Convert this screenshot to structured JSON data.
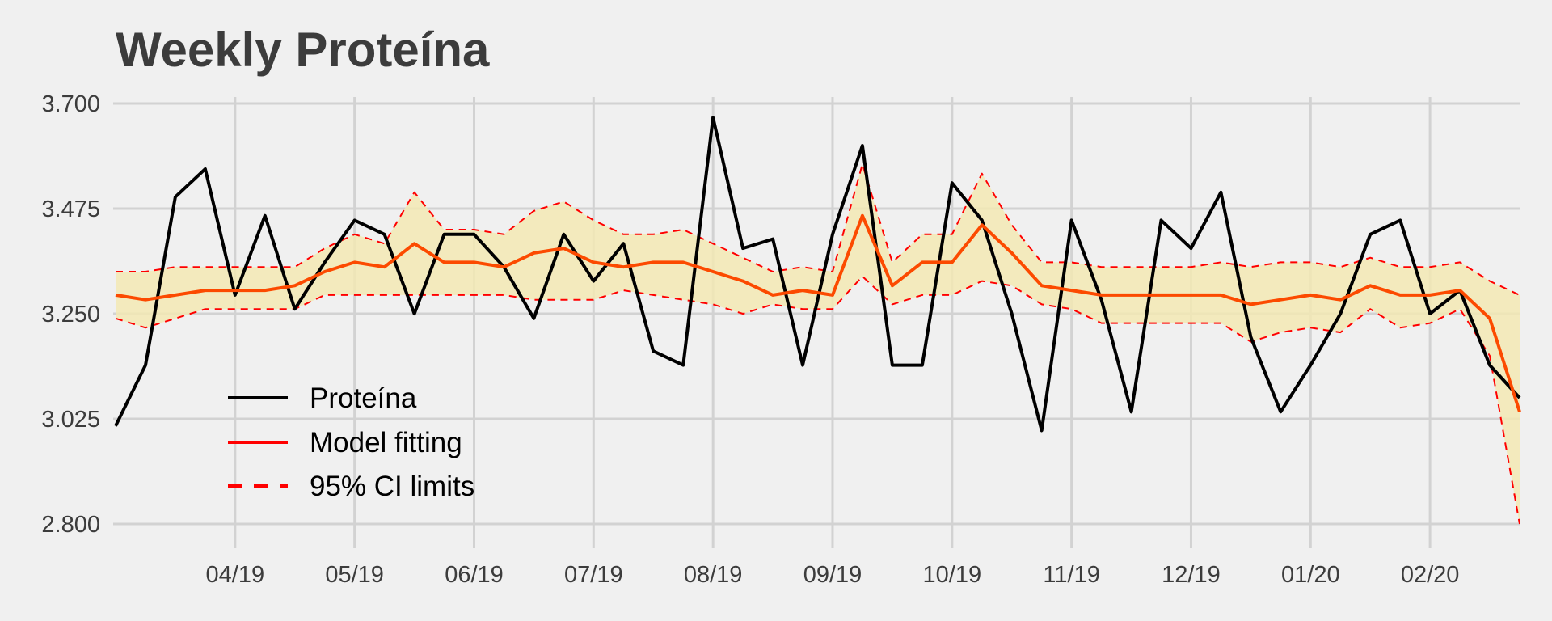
{
  "chart_data": {
    "type": "line",
    "title": "Weekly Proteína",
    "xlabel": "",
    "ylabel": "",
    "ylim": [
      2.8,
      3.7
    ],
    "y_ticks": [
      "3.700",
      "3.475",
      "3.250",
      "3.025",
      "2.800"
    ],
    "x_ticks": [
      {
        "label": "04/19",
        "x": 4
      },
      {
        "label": "05/19",
        "x": 8
      },
      {
        "label": "06/19",
        "x": 12
      },
      {
        "label": "07/19",
        "x": 16
      },
      {
        "label": "08/19",
        "x": 20
      },
      {
        "label": "09/19",
        "x": 24
      },
      {
        "label": "10/19",
        "x": 28
      },
      {
        "label": "11/19",
        "x": 32
      },
      {
        "label": "12/19",
        "x": 36
      },
      {
        "label": "01/20",
        "x": 40
      },
      {
        "label": "02/20",
        "x": 44
      }
    ],
    "grid": true,
    "legend_position": "bottom-left",
    "x": [
      0,
      1,
      2,
      3,
      4,
      5,
      6,
      7,
      8,
      9,
      10,
      11,
      12,
      13,
      14,
      15,
      16,
      17,
      18,
      19,
      20,
      21,
      22,
      23,
      24,
      25,
      26,
      27,
      28,
      29,
      30,
      31,
      32,
      33,
      34,
      35,
      36,
      37,
      38,
      39,
      40,
      41,
      42,
      43,
      44,
      45,
      46,
      47
    ],
    "ci_band_color": "#f3e9b4",
    "series": [
      {
        "name": "Proteína",
        "color": "#000000",
        "style": "solid",
        "values": [
          3.01,
          3.14,
          3.5,
          3.56,
          3.29,
          3.46,
          3.26,
          3.36,
          3.45,
          3.42,
          3.25,
          3.42,
          3.42,
          3.35,
          3.24,
          3.42,
          3.32,
          3.4,
          3.17,
          3.14,
          3.67,
          3.39,
          3.41,
          3.14,
          3.42,
          3.61,
          3.14,
          3.14,
          3.53,
          3.45,
          3.25,
          3.0,
          3.45,
          3.28,
          3.04,
          3.45,
          3.39,
          3.51,
          3.2,
          3.04,
          3.14,
          3.25,
          3.42,
          3.45,
          3.25,
          3.3,
          3.14,
          3.07
        ]
      },
      {
        "name": "Model fitting",
        "color": "#fc4a00",
        "style": "solid",
        "values": [
          3.29,
          3.28,
          3.29,
          3.3,
          3.3,
          3.3,
          3.31,
          3.34,
          3.36,
          3.35,
          3.4,
          3.36,
          3.36,
          3.35,
          3.38,
          3.39,
          3.36,
          3.35,
          3.36,
          3.36,
          3.34,
          3.32,
          3.29,
          3.3,
          3.29,
          3.46,
          3.31,
          3.36,
          3.36,
          3.44,
          3.38,
          3.31,
          3.3,
          3.29,
          3.29,
          3.29,
          3.29,
          3.29,
          3.27,
          3.28,
          3.29,
          3.28,
          3.31,
          3.29,
          3.29,
          3.3,
          3.24,
          3.04
        ]
      },
      {
        "name": "95% CI limits",
        "color": "#ff0000",
        "style": "dashed",
        "upper": [
          3.34,
          3.34,
          3.35,
          3.35,
          3.35,
          3.35,
          3.35,
          3.39,
          3.42,
          3.4,
          3.51,
          3.43,
          3.43,
          3.42,
          3.47,
          3.49,
          3.45,
          3.42,
          3.42,
          3.43,
          3.4,
          3.37,
          3.34,
          3.35,
          3.34,
          3.57,
          3.36,
          3.42,
          3.42,
          3.55,
          3.44,
          3.36,
          3.36,
          3.35,
          3.35,
          3.35,
          3.35,
          3.36,
          3.35,
          3.36,
          3.36,
          3.35,
          3.37,
          3.35,
          3.35,
          3.36,
          3.32,
          3.29
        ],
        "lower": [
          3.24,
          3.22,
          3.24,
          3.26,
          3.26,
          3.26,
          3.26,
          3.29,
          3.29,
          3.29,
          3.29,
          3.29,
          3.29,
          3.29,
          3.28,
          3.28,
          3.28,
          3.3,
          3.29,
          3.28,
          3.27,
          3.25,
          3.27,
          3.26,
          3.26,
          3.33,
          3.27,
          3.29,
          3.29,
          3.32,
          3.31,
          3.27,
          3.26,
          3.23,
          3.23,
          3.23,
          3.23,
          3.23,
          3.19,
          3.21,
          3.22,
          3.21,
          3.26,
          3.22,
          3.23,
          3.26,
          3.16,
          2.8
        ]
      }
    ]
  }
}
